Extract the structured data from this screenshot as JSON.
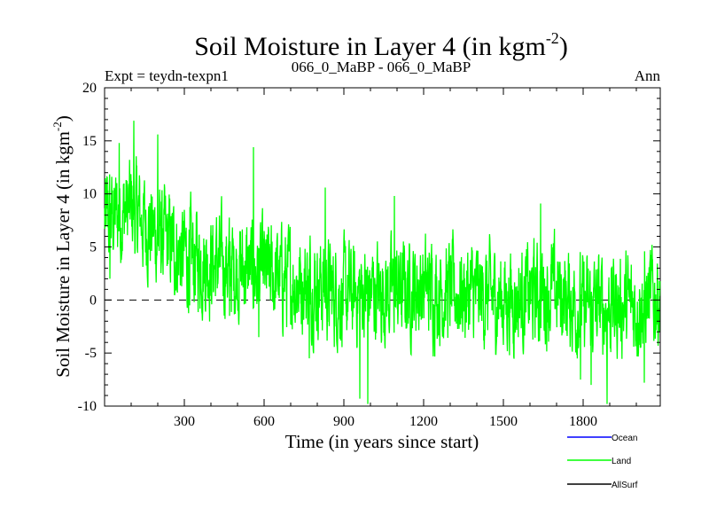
{
  "chart_data": {
    "type": "line",
    "title": "Soil Moisture in Layer 4 (in kgm",
    "title_sup": "-2",
    "title_close": ")",
    "expt_label": "Expt = teydn-texpn1",
    "subtitle": "066_0_MaBP - 066_0_MaBP",
    "season_label": "Ann",
    "xlabel": "Time (in years since start)",
    "ylabel": "Soil Moisture in Layer 4 (in kgm",
    "ylabel_sup": "-2",
    "ylabel_close": ")",
    "xlim": [
      0,
      2090
    ],
    "ylim": [
      -10,
      20
    ],
    "x_ticks": [
      300,
      600,
      900,
      1200,
      1500,
      1800
    ],
    "y_ticks": [
      -10,
      -5,
      0,
      5,
      10,
      15,
      20
    ],
    "zero_line": {
      "y": 0,
      "style": "dashed"
    },
    "n_points": 2090,
    "trend_anchors": [
      [
        0,
        7.5
      ],
      [
        100,
        8.5
      ],
      [
        200,
        6
      ],
      [
        300,
        4.2
      ],
      [
        400,
        3.5
      ],
      [
        500,
        3
      ],
      [
        600,
        2.5
      ],
      [
        700,
        1.8
      ],
      [
        800,
        1.5
      ],
      [
        900,
        0.3
      ],
      [
        1000,
        0.8
      ],
      [
        1100,
        0.8
      ],
      [
        1200,
        1.2
      ],
      [
        1300,
        0.7
      ],
      [
        1400,
        0.5
      ],
      [
        1500,
        0
      ],
      [
        1600,
        0.4
      ],
      [
        1700,
        0.8
      ],
      [
        1800,
        -0.8
      ],
      [
        1900,
        -0.5
      ],
      [
        2000,
        -0.5
      ],
      [
        2090,
        0.5
      ]
    ],
    "noise_amplitude": 3.2,
    "spike_points": [
      [
        20,
        2
      ],
      [
        55,
        14.8
      ],
      [
        110,
        16.9
      ],
      [
        135,
        7
      ],
      [
        200,
        15.6
      ],
      [
        300,
        8.5
      ],
      [
        320,
        -0.5
      ],
      [
        470,
        -1.5
      ],
      [
        560,
        14.4
      ],
      [
        580,
        -3.5
      ],
      [
        600,
        6.5
      ],
      [
        770,
        -5.5
      ],
      [
        830,
        10.6
      ],
      [
        960,
        -9.3
      ],
      [
        990,
        -9.8
      ],
      [
        1090,
        9.8
      ],
      [
        1640,
        9.1
      ],
      [
        1790,
        -7.5
      ],
      [
        1830,
        -8
      ],
      [
        1890,
        -9.8
      ],
      [
        2030,
        -7.8
      ],
      [
        2060,
        3.9
      ]
    ],
    "series": [
      {
        "name": "Ocean",
        "color": "#0000ff",
        "visible": false
      },
      {
        "name": "Land",
        "color": "#00ff00",
        "visible": true
      },
      {
        "name": "AllSurf",
        "color": "#000000",
        "visible": false
      }
    ]
  }
}
